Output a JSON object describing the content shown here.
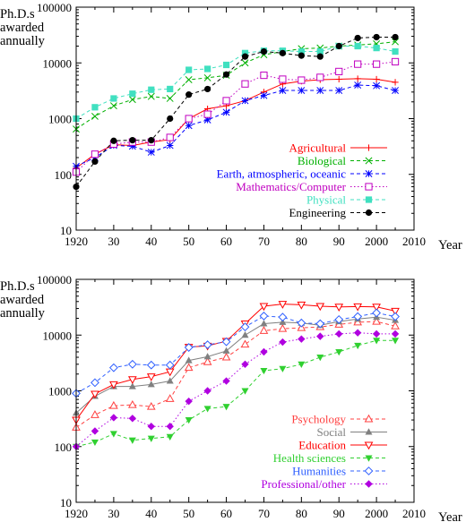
{
  "chart_data": [
    {
      "type": "line",
      "ylabel": "Ph.D.s awarded annually",
      "xlabel": "Year",
      "xlim": [
        1920,
        2010
      ],
      "ylim": [
        10,
        100000
      ],
      "yscale": "log",
      "xticks": [
        "1920",
        "30",
        "40",
        "50",
        "60",
        "70",
        "80",
        "90",
        "2000",
        "2010"
      ],
      "yticks": [
        "10",
        "100",
        "1000",
        "10000",
        "100000"
      ],
      "legend_position": "lower-right",
      "series": [
        {
          "name": "Agricultural",
          "color": "#ff0000",
          "marker": "plus",
          "dash": "solid",
          "x": [
            1920,
            1925,
            1930,
            1935,
            1940,
            1945,
            1950,
            1955,
            1960,
            1965,
            1970,
            1975,
            1980,
            1985,
            1990,
            1995,
            2000,
            2005
          ],
          "y": [
            130,
            230,
            340,
            330,
            380,
            420,
            1000,
            1500,
            1700,
            2100,
            3000,
            4200,
            4700,
            5000,
            5100,
            5200,
            5100,
            4500
          ]
        },
        {
          "name": "Biological",
          "color": "#00b000",
          "marker": "x",
          "dash": "dashed",
          "x": [
            1920,
            1925,
            1930,
            1935,
            1940,
            1945,
            1950,
            1955,
            1960,
            1965,
            1970,
            1975,
            1980,
            1985,
            1990,
            1995,
            2000,
            2005
          ],
          "y": [
            650,
            1100,
            1700,
            2200,
            2500,
            2300,
            5000,
            5400,
            6000,
            10000,
            14000,
            16000,
            18000,
            18500,
            20000,
            21000,
            22000,
            24000
          ]
        },
        {
          "name": "Earth, atmospheric, oceanic",
          "color": "#0000ff",
          "marker": "star",
          "dash": "dashed",
          "x": [
            1920,
            1925,
            1930,
            1935,
            1940,
            1945,
            1950,
            1955,
            1960,
            1965,
            1970,
            1975,
            1980,
            1985,
            1990,
            1995,
            2000,
            2005
          ],
          "y": [
            140,
            200,
            330,
            320,
            250,
            330,
            750,
            950,
            1300,
            2100,
            2600,
            3200,
            3200,
            3200,
            3200,
            4000,
            3900,
            3200
          ]
        },
        {
          "name": "Mathematics/Computer",
          "color": "#c000c0",
          "marker": "open-square",
          "dash": "dotted",
          "x": [
            1920,
            1925,
            1930,
            1935,
            1940,
            1945,
            1950,
            1955,
            1960,
            1965,
            1970,
            1975,
            1980,
            1985,
            1990,
            1995,
            2000,
            2005
          ],
          "y": [
            110,
            230,
            350,
            380,
            380,
            460,
            1000,
            1200,
            2100,
            4200,
            6000,
            5100,
            4900,
            5500,
            7000,
            9500,
            9500,
            10500
          ]
        },
        {
          "name": "Physical",
          "color": "#40e0c0",
          "marker": "filled-square",
          "dash": "dashed",
          "x": [
            1920,
            1925,
            1930,
            1935,
            1940,
            1945,
            1950,
            1955,
            1960,
            1965,
            1970,
            1975,
            1980,
            1985,
            1990,
            1995,
            2000,
            2005
          ],
          "y": [
            1000,
            1600,
            2300,
            2800,
            3300,
            3400,
            7500,
            7800,
            9200,
            15000,
            16500,
            16500,
            16000,
            16000,
            20000,
            20000,
            18500,
            16000
          ]
        },
        {
          "name": "Engineering",
          "color": "#000000",
          "marker": "filled-circle",
          "dash": "dashed",
          "x": [
            1920,
            1925,
            1930,
            1935,
            1940,
            1945,
            1950,
            1955,
            1960,
            1965,
            1970,
            1975,
            1980,
            1985,
            1990,
            1995,
            2000,
            2005
          ],
          "y": [
            60,
            170,
            400,
            410,
            410,
            1000,
            2700,
            3400,
            6200,
            13000,
            16000,
            15000,
            13500,
            13000,
            20000,
            28000,
            29000,
            29000
          ]
        }
      ]
    },
    {
      "type": "line",
      "ylabel": "Ph.D.s awarded annually",
      "xlabel": "Year",
      "xlim": [
        1920,
        2010
      ],
      "ylim": [
        10,
        100000
      ],
      "yscale": "log",
      "xticks": [
        "1920",
        "30",
        "40",
        "50",
        "60",
        "70",
        "80",
        "90",
        "2000",
        "2010"
      ],
      "yticks": [
        "10",
        "100",
        "1000",
        "10000",
        "100000"
      ],
      "legend_position": "lower-right",
      "series": [
        {
          "name": "Psychology",
          "color": "#ff4040",
          "marker": "open-triangle",
          "dash": "dashed",
          "x": [
            1920,
            1925,
            1930,
            1935,
            1940,
            1945,
            1950,
            1955,
            1960,
            1965,
            1970,
            1975,
            1980,
            1985,
            1990,
            1995,
            2000,
            2005
          ],
          "y": [
            220,
            370,
            540,
            560,
            520,
            720,
            2600,
            3300,
            4000,
            6800,
            12000,
            13000,
            13500,
            14000,
            15500,
            17000,
            17500,
            14500
          ]
        },
        {
          "name": "Social",
          "color": "#808080",
          "marker": "filled-triangle",
          "dash": "solid",
          "x": [
            1920,
            1925,
            1930,
            1935,
            1940,
            1945,
            1950,
            1955,
            1960,
            1965,
            1970,
            1975,
            1980,
            1985,
            1990,
            1995,
            2000,
            2005
          ],
          "y": [
            400,
            800,
            1200,
            1200,
            1300,
            1500,
            3500,
            4100,
            5200,
            10000,
            16000,
            17000,
            16500,
            15000,
            17500,
            19500,
            21000,
            18500
          ]
        },
        {
          "name": "Education",
          "color": "#ff0000",
          "marker": "open-inverted-triangle",
          "dash": "solid",
          "x": [
            1920,
            1925,
            1930,
            1935,
            1940,
            1945,
            1950,
            1955,
            1960,
            1965,
            1970,
            1975,
            1980,
            1985,
            1990,
            1995,
            2000,
            2005
          ],
          "y": [
            300,
            880,
            1300,
            1600,
            1800,
            2200,
            6100,
            6400,
            7800,
            16000,
            33000,
            36000,
            35000,
            33000,
            32000,
            32500,
            32000,
            27000
          ]
        },
        {
          "name": "Health sciences",
          "color": "#30d030",
          "marker": "filled-inverted-triangle",
          "dash": "dashed",
          "x": [
            1920,
            1925,
            1930,
            1935,
            1940,
            1945,
            1950,
            1955,
            1960,
            1965,
            1970,
            1975,
            1980,
            1985,
            1990,
            1995,
            2000,
            2005
          ],
          "y": [
            100,
            120,
            170,
            130,
            140,
            150,
            300,
            480,
            520,
            1000,
            2300,
            2500,
            3000,
            4000,
            5000,
            6500,
            8000,
            8000
          ]
        },
        {
          "name": "Humanities",
          "color": "#3060ff",
          "marker": "open-diamond",
          "dash": "dashed",
          "x": [
            1920,
            1925,
            1930,
            1935,
            1940,
            1945,
            1950,
            1955,
            1960,
            1965,
            1970,
            1975,
            1980,
            1985,
            1990,
            1995,
            2000,
            2005
          ],
          "y": [
            900,
            1400,
            2600,
            3000,
            2900,
            2900,
            6000,
            6700,
            7600,
            14000,
            22000,
            21000,
            16500,
            16000,
            19000,
            21500,
            25000,
            21500
          ]
        },
        {
          "name": "Professional/other",
          "color": "#b000e0",
          "marker": "filled-diamond",
          "dash": "dotted",
          "x": [
            1920,
            1925,
            1930,
            1935,
            1940,
            1945,
            1950,
            1955,
            1960,
            1965,
            1970,
            1975,
            1980,
            1985,
            1990,
            1995,
            2000,
            2005
          ],
          "y": [
            100,
            190,
            330,
            320,
            230,
            230,
            650,
            1000,
            1500,
            3000,
            5000,
            7500,
            8500,
            9500,
            10500,
            11000,
            10500,
            10500
          ]
        }
      ]
    }
  ]
}
